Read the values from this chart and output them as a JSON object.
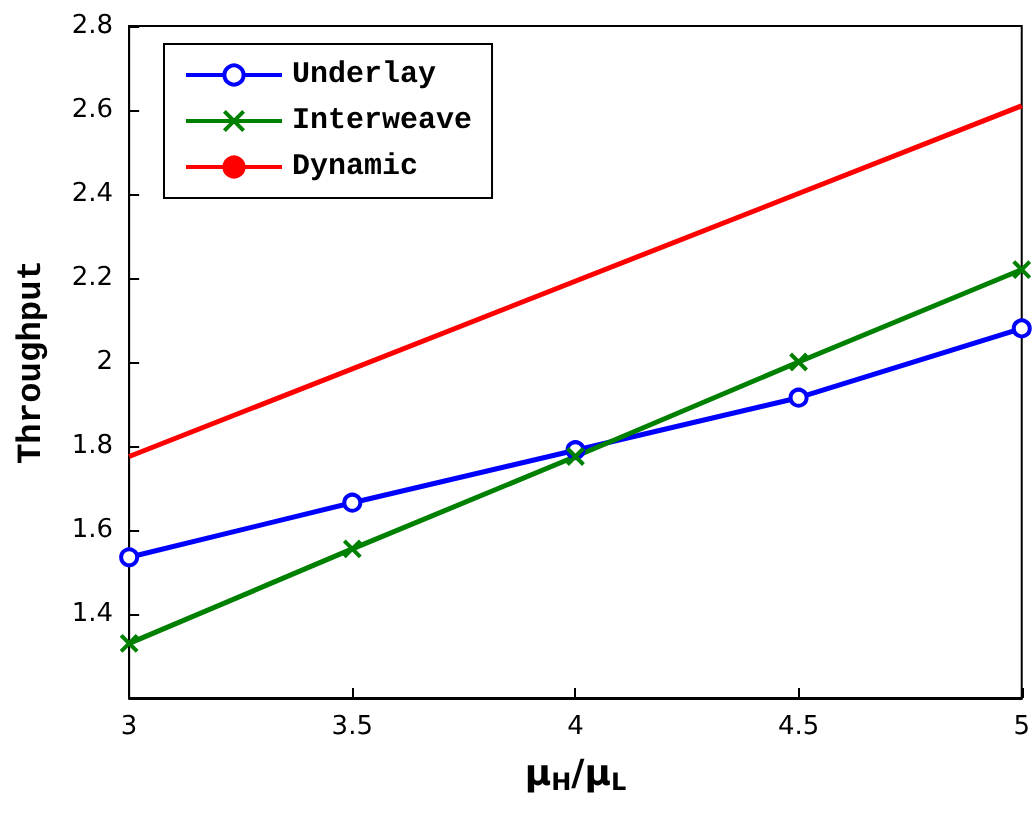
{
  "chart_data": {
    "type": "line",
    "xlabel": "μ$_{H}$/μ$_{L}$",
    "ylabel": "Throughput",
    "xlim": [
      3,
      5
    ],
    "xticks": [
      3,
      3.5,
      4,
      4.5,
      5
    ],
    "ylim": [
      1.2,
      2.8
    ],
    "yticks": [
      {
        "value": 1.2,
        "label": null
      },
      1.4,
      1.6,
      1.8,
      2,
      2.2,
      2.4,
      2.6,
      2.8
    ],
    "legend": "top left",
    "grid": false,
    "series": [
      {
        "name": "Underlay",
        "color": "#0000ff",
        "marker": "circle",
        "x": [
          3,
          3.5,
          4,
          4.5,
          5
        ],
        "values": [
          1.535,
          1.665,
          1.79,
          1.915,
          2.08
        ]
      },
      {
        "name": "Interweave",
        "color": "#008000",
        "marker": "cross",
        "x": [
          3,
          3.5,
          4,
          4.5,
          5
        ],
        "values": [
          1.33,
          1.555,
          1.775,
          2.0,
          2.22
        ]
      },
      {
        "name": "Dynamic",
        "color": "#ff0000",
        "marker": "none",
        "x": [
          3,
          5
        ],
        "values": [
          1.775,
          2.61
        ]
      }
    ]
  }
}
